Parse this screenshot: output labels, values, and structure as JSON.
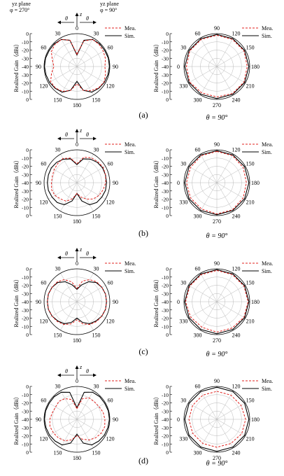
{
  "figure": {
    "panel_labels": [
      "(a)",
      "(b)",
      "(c)",
      "(d)"
    ],
    "header": {
      "left_plane": "yz plane",
      "left_phi": "φ = 270°",
      "right_plane": "yz plane",
      "right_phi": "φ = 90°"
    },
    "legend": {
      "mea": "Mea.",
      "sim": "Sim."
    },
    "ylabel": "Realized Gain（dBi）",
    "theta_symbol": "θ",
    "z_symbol": "z",
    "azimuth_caption": "θ = 90°",
    "elevation_angle_labels": [
      "0",
      "30",
      "60",
      "90",
      "120",
      "150",
      "180",
      "150",
      "120",
      "90",
      "60",
      "30"
    ],
    "azimuth_angle_labels": [
      "0",
      "30",
      "60",
      "90",
      "120",
      "150",
      "180",
      "210",
      "240",
      "270",
      "300",
      "330"
    ],
    "radial_tick_labels": [
      "0",
      "-10",
      "-20",
      "-30",
      "-40",
      "-30",
      "-20",
      "-10",
      "0"
    ],
    "colors": {
      "mea": "#e0201c",
      "sim": "#000000",
      "grid": "#b8b8b8"
    }
  },
  "chart_data": [
    {
      "type": "polar",
      "panel": "(a)",
      "plane": "yz",
      "rlim": [
        -40,
        0
      ],
      "grid": true,
      "angles_deg": [
        0,
        15,
        30,
        45,
        60,
        75,
        90,
        105,
        120,
        135,
        150,
        165,
        180,
        195,
        210,
        225,
        240,
        255,
        270,
        285,
        300,
        315,
        330,
        345
      ],
      "series": [
        {
          "name": "Sim.",
          "values": [
            -26,
            -7,
            -2,
            -1,
            -1,
            -0.5,
            -0.5,
            -1,
            -1.5,
            -2.5,
            -4,
            -10,
            -22,
            -10,
            -4,
            -2.5,
            -1.5,
            -1,
            -0.5,
            -0.5,
            -1,
            -1,
            -2,
            -7
          ]
        },
        {
          "name": "Mea.",
          "values": [
            -25,
            -8,
            -2,
            -2,
            -3,
            -4,
            -6,
            -4,
            -2,
            -3,
            -6,
            -10,
            -19,
            -10,
            -5,
            -3,
            -3,
            -8,
            -12,
            -9,
            -4,
            -2,
            -2,
            -7
          ]
        }
      ]
    },
    {
      "type": "polar",
      "panel": "(a)",
      "plane": "θ = 90°",
      "rlim": [
        -40,
        0
      ],
      "grid": true,
      "angles_deg": [
        0,
        30,
        60,
        90,
        120,
        150,
        180,
        210,
        240,
        270,
        300,
        330
      ],
      "series": [
        {
          "name": "Sim.",
          "values": [
            -1,
            -1,
            -1,
            -1,
            -1,
            -1,
            -1,
            -1,
            -1,
            -1,
            -1,
            -1
          ]
        },
        {
          "name": "Mea.",
          "values": [
            -2,
            -2,
            -2,
            -3,
            -2,
            -2,
            -3,
            -3,
            -2,
            -3,
            -2,
            -2
          ]
        }
      ]
    },
    {
      "type": "polar",
      "panel": "(b)",
      "plane": "yz",
      "rlim": [
        -40,
        0
      ],
      "grid": true,
      "angles_deg": [
        0,
        15,
        30,
        45,
        60,
        75,
        90,
        105,
        120,
        135,
        150,
        165,
        180,
        195,
        210,
        225,
        240,
        255,
        270,
        285,
        300,
        315,
        330,
        345
      ],
      "series": [
        {
          "name": "Sim.",
          "values": [
            -18,
            -10,
            -7,
            -5,
            -4,
            -4,
            -4,
            -4,
            -5,
            -6,
            -9,
            -17,
            -27,
            -17,
            -9,
            -6,
            -5,
            -4,
            -4,
            -4,
            -4,
            -5,
            -7,
            -10
          ]
        },
        {
          "name": "Mea.",
          "values": [
            -17,
            -8,
            -5,
            -4,
            -3,
            -4,
            -5,
            -7,
            -9,
            -12,
            -17,
            -22,
            -27,
            -20,
            -14,
            -12,
            -9,
            -8,
            -9,
            -9,
            -8,
            -7,
            -6,
            -9
          ]
        }
      ]
    },
    {
      "type": "polar",
      "panel": "(b)",
      "plane": "θ = 90°",
      "rlim": [
        -40,
        0
      ],
      "grid": true,
      "angles_deg": [
        0,
        30,
        60,
        90,
        120,
        150,
        180,
        210,
        240,
        270,
        300,
        330
      ],
      "series": [
        {
          "name": "Sim.",
          "values": [
            -1,
            -1,
            -1,
            -1,
            -1,
            -1,
            -1,
            -1,
            -1,
            -1,
            -1,
            -1
          ]
        },
        {
          "name": "Mea.",
          "values": [
            -2,
            -2,
            -3,
            -4,
            -3,
            -2,
            -2,
            -3,
            -3,
            -3,
            -3,
            -2
          ]
        }
      ]
    },
    {
      "type": "polar",
      "panel": "(c)",
      "plane": "yz",
      "rlim": [
        -40,
        0
      ],
      "grid": true,
      "angles_deg": [
        0,
        15,
        30,
        45,
        60,
        75,
        90,
        105,
        120,
        135,
        150,
        165,
        180,
        195,
        210,
        225,
        240,
        255,
        270,
        285,
        300,
        315,
        330,
        345
      ],
      "series": [
        {
          "name": "Sim.",
          "values": [
            -25,
            -19,
            -12,
            -7,
            -5,
            -4,
            -4,
            -4,
            -5,
            -7,
            -9,
            -14,
            -20,
            -14,
            -9,
            -7,
            -5,
            -4,
            -4,
            -4,
            -5,
            -7,
            -12,
            -19
          ]
        },
        {
          "name": "Mea.",
          "values": [
            -24,
            -14,
            -9,
            -6,
            -5,
            -4,
            -4,
            -4,
            -5,
            -6,
            -8,
            -12,
            -18,
            -12,
            -8,
            -6,
            -5,
            -4,
            -4,
            -4,
            -5,
            -6,
            -9,
            -15
          ]
        }
      ]
    },
    {
      "type": "polar",
      "panel": "(c)",
      "plane": "θ = 90°",
      "rlim": [
        -40,
        0
      ],
      "grid": true,
      "angles_deg": [
        0,
        30,
        60,
        90,
        120,
        150,
        180,
        210,
        240,
        270,
        300,
        330
      ],
      "series": [
        {
          "name": "Sim.",
          "values": [
            -1,
            -1,
            -1,
            -1,
            -1,
            -1,
            -1,
            -1,
            -1,
            -1,
            -1,
            -1
          ]
        },
        {
          "name": "Mea.",
          "values": [
            -2,
            -2,
            -2,
            -2,
            -2,
            -3,
            -3,
            -4,
            -3,
            -2,
            -2,
            -2
          ]
        }
      ]
    },
    {
      "type": "polar",
      "panel": "(d)",
      "plane": "yz",
      "rlim": [
        -40,
        0
      ],
      "grid": true,
      "angles_deg": [
        0,
        15,
        30,
        45,
        60,
        75,
        90,
        105,
        120,
        135,
        150,
        165,
        180,
        195,
        210,
        225,
        240,
        255,
        270,
        285,
        300,
        315,
        330,
        345
      ],
      "series": [
        {
          "name": "Sim.",
          "values": [
            -26,
            -6,
            -2,
            -1,
            -1,
            -0.5,
            -0.5,
            -1,
            -1.5,
            -2.5,
            -4,
            -10,
            -22,
            -10,
            -4,
            -2.5,
            -1.5,
            -1,
            -0.5,
            -0.5,
            -1,
            -1,
            -2,
            -6
          ]
        },
        {
          "name": "Mea.",
          "values": [
            -27,
            -14,
            -10,
            -10,
            -9,
            -7,
            -6,
            -5,
            -6,
            -8,
            -11,
            -15,
            -20,
            -14,
            -10,
            -8,
            -7,
            -6,
            -7,
            -9,
            -10,
            -9,
            -11,
            -15
          ]
        }
      ]
    },
    {
      "type": "polar",
      "panel": "(d)",
      "plane": "θ = 90°",
      "rlim": [
        -40,
        0
      ],
      "grid": true,
      "angles_deg": [
        0,
        30,
        60,
        90,
        120,
        150,
        180,
        210,
        240,
        270,
        300,
        330
      ],
      "series": [
        {
          "name": "Sim.",
          "values": [
            -1,
            -1,
            -1,
            -1,
            -1,
            -1,
            -1,
            -1,
            -1,
            -1,
            -1,
            -1
          ]
        },
        {
          "name": "Mea.",
          "values": [
            -6,
            -6,
            -6,
            -5,
            -5,
            -6,
            -6,
            -6,
            -6,
            -6,
            -6,
            -6
          ]
        }
      ]
    }
  ]
}
